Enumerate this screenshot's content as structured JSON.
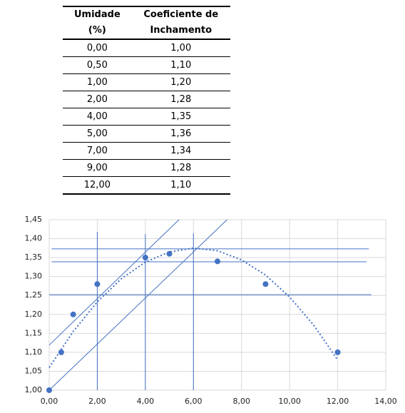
{
  "table": {
    "header": [
      "Umidade (%)",
      "Coeficiente de Inchamento"
    ],
    "rows": [
      [
        "0,00",
        "1,00"
      ],
      [
        "0,50",
        "1,10"
      ],
      [
        "1,00",
        "1,20"
      ],
      [
        "2,00",
        "1,28"
      ],
      [
        "4,00",
        "1,35"
      ],
      [
        "5,00",
        "1,36"
      ],
      [
        "7,00",
        "1,34"
      ],
      [
        "9,00",
        "1,28"
      ],
      [
        "12,00",
        "1,10"
      ]
    ]
  },
  "chart_data": {
    "type": "scatter",
    "series": [
      {
        "color": "#4472c4",
        "x": [
          0,
          0.5,
          1,
          2,
          4,
          5,
          7,
          9,
          12
        ],
        "values": [
          1.0,
          1.1,
          1.2,
          1.28,
          1.35,
          1.36,
          1.34,
          1.28,
          1.1
        ]
      }
    ],
    "trendline": {
      "style": "dotted",
      "color": "#4472c4",
      "x": [
        0,
        1,
        2,
        3,
        4,
        5,
        6,
        7,
        8,
        9,
        10,
        11,
        12
      ],
      "y": [
        1.06,
        1.155,
        1.233,
        1.294,
        1.338,
        1.365,
        1.375,
        1.368,
        1.344,
        1.304,
        1.246,
        1.172,
        1.08
      ]
    },
    "reference_lines": [
      {
        "x": [
          2,
          2
        ],
        "y": [
          1.0,
          1.418
        ]
      },
      {
        "x": [
          4,
          4
        ],
        "y": [
          1.0,
          1.412
        ]
      },
      {
        "x": [
          6,
          6
        ],
        "y": [
          1.0,
          1.414
        ]
      },
      {
        "x": [
          0.1,
          13.3
        ],
        "y": [
          1.373,
          1.373
        ]
      },
      {
        "x": [
          0.1,
          13.2
        ],
        "y": [
          1.339,
          1.339
        ]
      },
      {
        "x": [
          0,
          13.4
        ],
        "y": [
          1.252,
          1.252
        ]
      },
      {
        "x": [
          0,
          5.4
        ],
        "y": [
          1.119,
          1.45
        ]
      },
      {
        "x": [
          0,
          7.4
        ],
        "y": [
          1.0,
          1.45
        ]
      }
    ],
    "xlim": [
      0,
      14
    ],
    "ylim": [
      1.0,
      1.45
    ],
    "xticks": [
      {
        "value": 0,
        "label": "0,00"
      },
      {
        "value": 2,
        "label": "2,00"
      },
      {
        "value": 4,
        "label": "4,00"
      },
      {
        "value": 6,
        "label": "6,00"
      },
      {
        "value": 8,
        "label": "8,00"
      },
      {
        "value": 10,
        "label": "10,00"
      },
      {
        "value": 12,
        "label": "12,00"
      },
      {
        "value": 14,
        "label": "14,00"
      }
    ],
    "yticks": [
      {
        "value": 1.0,
        "label": "1,00"
      },
      {
        "value": 1.05,
        "label": "1,05"
      },
      {
        "value": 1.1,
        "label": "1,10"
      },
      {
        "value": 1.15,
        "label": "1,15"
      },
      {
        "value": 1.2,
        "label": "1,20"
      },
      {
        "value": 1.25,
        "label": "1,25"
      },
      {
        "value": 1.3,
        "label": "1,30"
      },
      {
        "value": 1.35,
        "label": "1,35"
      },
      {
        "value": 1.4,
        "label": "1,40"
      },
      {
        "value": 1.45,
        "label": "1,45"
      }
    ],
    "grid": true
  }
}
